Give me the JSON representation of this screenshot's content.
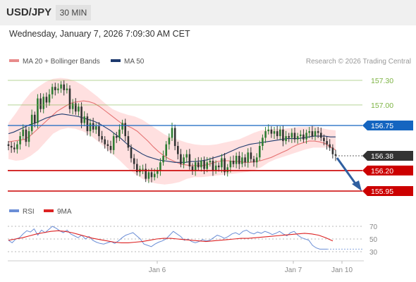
{
  "header": {
    "pair": "USD/JPY",
    "timeframe": "30 MIN"
  },
  "timestamp": "Wednesday, January 7, 2026 7:09:30 AM CET",
  "credit": "Research © 2026 Trading Central",
  "colors": {
    "bullish": "#2e7d32",
    "bearish": "#333333",
    "support": "#cc0000",
    "resistance": "#7cb342",
    "pivot": "#1565c0",
    "last": "#333333",
    "ma20": "#e57373",
    "ma50": "#1e3a6e",
    "bollinger": "#ffd6d6",
    "rsi": "#6b8ed6",
    "rsi_ma": "#dd2222"
  },
  "chart_data": [
    {
      "type": "candlestick",
      "title": "USD/JPY",
      "timeframe": "30 MIN",
      "legend": [
        {
          "label": "MA 20 + Bollinger Bands",
          "color": "#e88b8b"
        },
        {
          "label": "MA 50",
          "color": "#1e3a6e"
        }
      ],
      "x_tick_labels": [
        "Jan 6",
        "Jan 7",
        "Jan 10"
      ],
      "ylim": [
        155.85,
        157.4
      ],
      "levels": [
        {
          "value": 157.3,
          "label": "157.30",
          "kind": "resistance"
        },
        {
          "value": 157.0,
          "label": "157.00",
          "kind": "resistance"
        },
        {
          "value": 156.75,
          "label": "156.75",
          "kind": "pivot"
        },
        {
          "value": 156.38,
          "label": "156.38",
          "kind": "last"
        },
        {
          "value": 156.2,
          "label": "156.20",
          "kind": "support"
        },
        {
          "value": 155.95,
          "label": "155.95",
          "kind": "support"
        }
      ],
      "last_price": 156.38,
      "forecast_target": 155.95,
      "closes": [
        156.5,
        156.48,
        156.46,
        156.52,
        156.62,
        156.7,
        156.55,
        156.68,
        156.88,
        156.78,
        157.08,
        156.95,
        157.1,
        157.03,
        157.13,
        157.22,
        157.18,
        157.2,
        157.25,
        157.18,
        157.2,
        156.95,
        157.02,
        156.92,
        156.98,
        156.78,
        156.86,
        156.68,
        156.78,
        156.7,
        156.74,
        156.62,
        156.58,
        156.52,
        156.5,
        156.45,
        156.62,
        156.6,
        156.7,
        156.78,
        156.62,
        156.48,
        156.35,
        156.28,
        156.18,
        156.22,
        156.22,
        156.1,
        156.18,
        156.12,
        156.16,
        156.2,
        156.3,
        156.38,
        156.52,
        156.6,
        156.72,
        156.5,
        156.4,
        156.28,
        156.36,
        156.4,
        156.25,
        156.2,
        156.3,
        156.24,
        156.32,
        156.22,
        156.3,
        156.32,
        156.2,
        156.26,
        156.24,
        156.35,
        156.18,
        156.24,
        156.32,
        156.28,
        156.38,
        156.28,
        156.36,
        156.3,
        156.42,
        156.34,
        156.3,
        156.36,
        156.5,
        156.6,
        156.68,
        156.7,
        156.65,
        156.68,
        156.62,
        156.7,
        156.56,
        156.62,
        156.6,
        156.66,
        156.58,
        156.62,
        156.64,
        156.58,
        156.66,
        156.68,
        156.62,
        156.68,
        156.66,
        156.6,
        156.56,
        156.52,
        156.48,
        156.4,
        156.38
      ],
      "ma20": [
        156.55,
        156.56,
        156.57,
        156.58,
        156.62,
        156.68,
        156.74,
        156.8,
        156.86,
        156.92,
        156.96,
        157.0,
        157.03,
        157.04,
        157.05,
        157.04,
        157.02,
        156.98,
        156.93,
        156.88,
        156.83,
        156.78,
        156.75,
        156.72,
        156.68,
        156.62,
        156.56,
        156.49,
        156.43,
        156.38,
        156.34,
        156.31,
        156.28,
        156.27,
        156.26,
        156.26,
        156.26,
        156.27,
        156.29,
        156.31,
        156.32,
        156.32,
        156.31,
        156.31,
        156.3,
        156.3,
        156.31,
        156.32,
        156.34,
        156.36,
        156.39,
        156.42,
        156.45,
        156.49,
        156.52,
        156.54,
        156.56,
        156.56,
        156.55,
        156.53,
        156.49,
        156.45
      ],
      "ma50": [
        156.65,
        156.67,
        156.7,
        156.73,
        156.76,
        156.78,
        156.81,
        156.84,
        156.86,
        156.88,
        156.89,
        156.88,
        156.87,
        156.86,
        156.84,
        156.82,
        156.8,
        156.77,
        156.73,
        156.69,
        156.64,
        156.59,
        156.53,
        156.48,
        156.44,
        156.4,
        156.37,
        156.35,
        156.33,
        156.32,
        156.31,
        156.3,
        156.3,
        156.3,
        156.31,
        156.31,
        156.32,
        156.33,
        156.35,
        156.37,
        156.39,
        156.42,
        156.45,
        156.48,
        156.5,
        156.52,
        156.53,
        156.54,
        156.55,
        156.56,
        156.57,
        156.58,
        156.59,
        156.59,
        156.59,
        156.6,
        156.61,
        156.62,
        156.62,
        156.62,
        156.61,
        156.61
      ],
      "bb_upper": [
        156.78,
        156.9,
        157.04,
        157.15,
        157.22,
        157.28,
        157.32,
        157.33,
        157.32,
        157.29,
        157.24,
        157.17,
        157.1,
        157.02,
        156.95,
        156.91,
        156.88,
        156.86,
        156.82,
        156.76,
        156.7,
        156.64,
        156.6,
        156.57,
        156.54,
        156.52,
        156.51,
        156.51,
        156.52,
        156.54,
        156.56,
        156.58,
        156.62,
        156.66,
        156.69,
        156.7,
        156.71,
        156.71,
        156.72,
        156.73,
        156.73,
        156.74,
        156.72,
        156.7,
        156.69
      ],
      "bb_lower": [
        156.34,
        156.32,
        156.33,
        156.38,
        156.45,
        156.55,
        156.65,
        156.7,
        156.72,
        156.71,
        156.68,
        156.63,
        156.56,
        156.48,
        156.4,
        156.32,
        156.23,
        156.16,
        156.1,
        156.06,
        156.04,
        156.03,
        156.04,
        156.06,
        156.1,
        156.12,
        156.12,
        156.13,
        156.14,
        156.15,
        156.16,
        156.17,
        156.18,
        156.2,
        156.24,
        156.3,
        156.34,
        156.37,
        156.4,
        156.43,
        156.46,
        156.48,
        156.48,
        156.48,
        156.46
      ]
    },
    {
      "type": "line",
      "title": "RSI",
      "legend": [
        {
          "label": "RSI",
          "color": "#6b8ed6"
        },
        {
          "label": "9MA",
          "color": "#dd2222"
        }
      ],
      "ylim": [
        25,
        75
      ],
      "y_ticks": [
        "70",
        "50",
        "30"
      ],
      "series": [
        {
          "name": "RSI",
          "values": [
            48,
            44,
            50,
            52,
            58,
            63,
            61,
            66,
            56,
            64,
            60,
            65,
            70,
            67,
            63,
            60,
            64,
            58,
            55,
            52,
            56,
            50,
            54,
            48,
            45,
            43,
            42,
            44,
            46,
            43,
            47,
            52,
            56,
            58,
            60,
            55,
            50,
            42,
            40,
            38,
            42,
            45,
            47,
            50,
            56,
            62,
            58,
            54,
            48,
            50,
            46,
            44,
            46,
            49,
            47,
            48,
            52,
            56,
            54,
            51,
            54,
            58,
            60,
            57,
            62,
            64,
            60,
            58,
            61,
            59,
            62,
            60,
            57,
            59,
            62,
            58,
            55,
            60,
            62,
            56,
            52,
            50,
            48,
            40,
            36,
            34,
            34,
            34
          ]
        },
        {
          "name": "9MA",
          "values": [
            48,
            50,
            52,
            55,
            58,
            60,
            62,
            63,
            62,
            60,
            57,
            54,
            51,
            49,
            47,
            45,
            44,
            44,
            45,
            46,
            48,
            50,
            51,
            51,
            50,
            49,
            48,
            47,
            46,
            47,
            48,
            49,
            50,
            51,
            51,
            52,
            53,
            54,
            55,
            56,
            57,
            58,
            59,
            58,
            56,
            52,
            47
          ]
        }
      ]
    }
  ]
}
